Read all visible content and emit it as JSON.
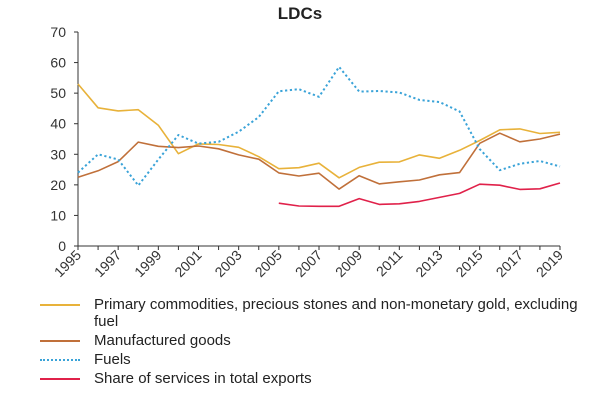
{
  "chart_data": {
    "type": "line",
    "title": "LDCs",
    "x": [
      "1995",
      "1996",
      "1997",
      "1998",
      "1999",
      "2000",
      "2001",
      "2002",
      "2003",
      "2004",
      "2005",
      "2006",
      "2007",
      "2008",
      "2009",
      "2010",
      "2011",
      "2012",
      "2013",
      "2014",
      "2015",
      "2016",
      "2017",
      "2018",
      "2019"
    ],
    "xticks": [
      "1995",
      "1997",
      "1999",
      "2001",
      "2003",
      "2005",
      "2007",
      "2009",
      "2011",
      "2013",
      "2015",
      "2017",
      "2019"
    ],
    "ylim": [
      0,
      70
    ],
    "yticks": [
      0,
      10,
      20,
      30,
      40,
      50,
      60,
      70
    ],
    "grid": false,
    "legend_position": "bottom",
    "series": [
      {
        "name": "Primary commodities, precious stones and non-monetary gold, excluding fuel",
        "color": "#e8b23a",
        "style": "solid",
        "values": [
          53,
          45.2,
          44.2,
          44.6,
          39.5,
          30.2,
          33.4,
          33.2,
          32.3,
          29.2,
          25.3,
          25.6,
          27.1,
          22.3,
          25.7,
          27.4,
          27.5,
          29.8,
          28.7,
          31.3,
          34.5,
          38,
          38.3,
          36.8,
          37.2
        ]
      },
      {
        "name": "Manufactured goods",
        "color": "#c0703a",
        "style": "solid",
        "values": [
          22.5,
          24.6,
          27.6,
          34,
          32.6,
          32.2,
          32.7,
          31.8,
          29.8,
          28.4,
          23.9,
          22.9,
          23.8,
          18.6,
          23,
          20.3,
          21,
          21.6,
          23.3,
          24,
          33.6,
          36.9,
          34.1,
          35,
          36.6
        ]
      },
      {
        "name": "Fuels",
        "color": "#3aa3d8",
        "style": "dotted",
        "values": [
          24,
          30,
          28.3,
          19.8,
          28.3,
          36.3,
          33.5,
          34.1,
          37.4,
          42.2,
          50.6,
          51.3,
          48.8,
          58.6,
          50.5,
          50.7,
          50.2,
          47.8,
          47.1,
          44,
          31.7,
          24.8,
          26.9,
          27.8,
          26
        ]
      },
      {
        "name": "Share of services in total exports",
        "color": "#e0214a",
        "style": "solid",
        "values": [
          null,
          null,
          null,
          null,
          null,
          null,
          null,
          null,
          null,
          null,
          14,
          13.1,
          13,
          13,
          15.5,
          13.6,
          13.8,
          14.6,
          15.9,
          17.2,
          20.2,
          19.9,
          18.5,
          18.7,
          20.6
        ]
      }
    ]
  }
}
